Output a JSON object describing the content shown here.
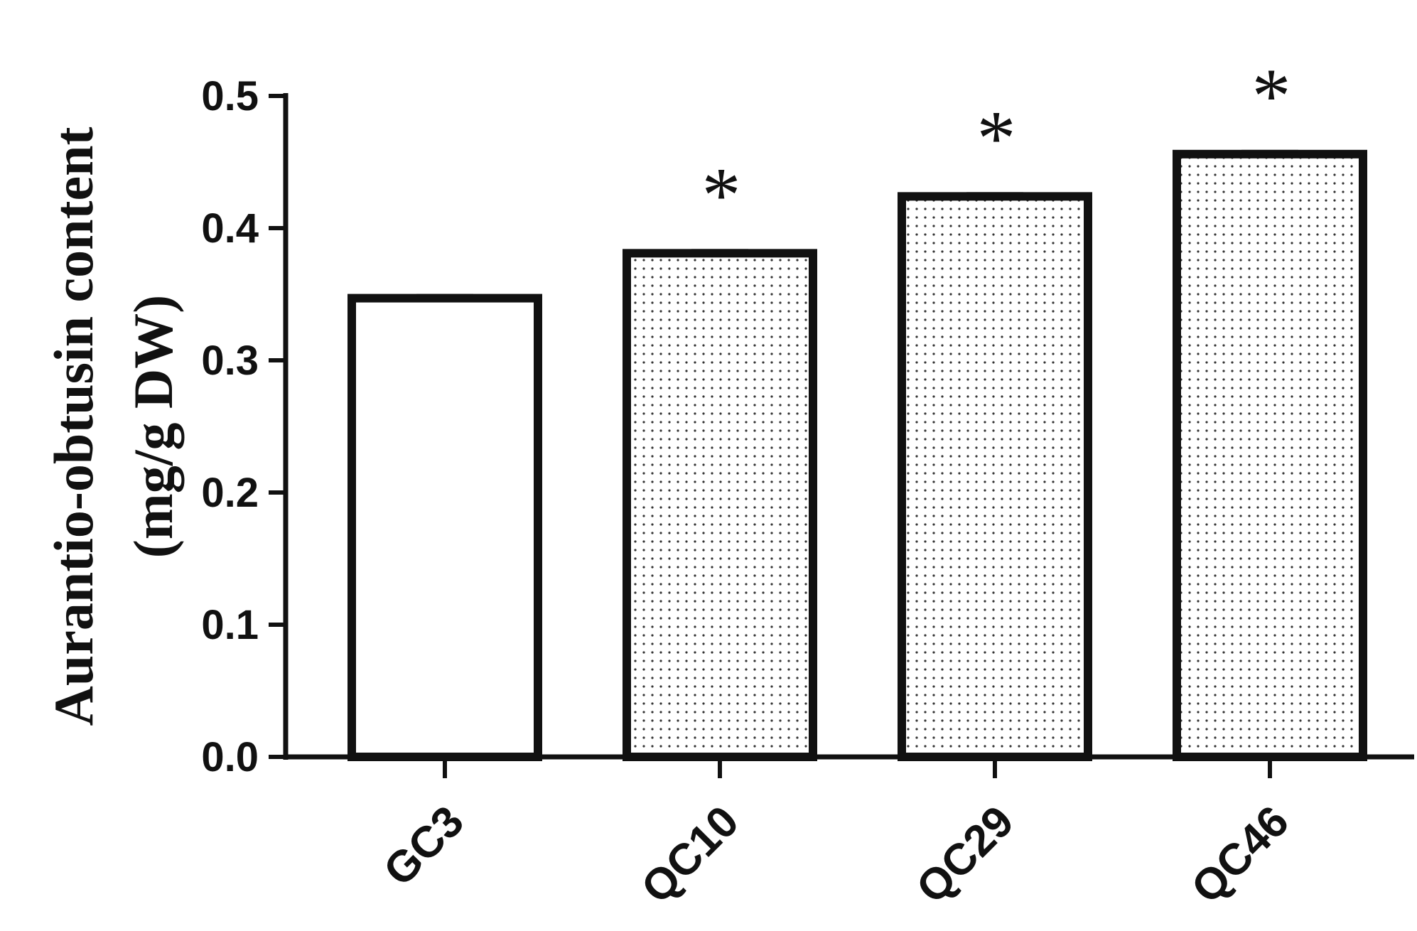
{
  "chart_data": {
    "type": "bar",
    "title": "",
    "categories": [
      "GC3",
      "QC10",
      "QC29",
      "QC46"
    ],
    "values": [
      0.347,
      0.381,
      0.424,
      0.456
    ],
    "fills": [
      "white",
      "dotted",
      "dotted",
      "dotted"
    ],
    "significance": [
      "",
      "*",
      "*",
      "*"
    ],
    "ylabel_line1": "Aurantio-obtusin content",
    "ylabel_line2": "(mg/g DW)",
    "xlabel": "",
    "ylim": [
      0,
      0.5
    ],
    "yticks": [
      "0.0",
      "0.1",
      "0.2",
      "0.3",
      "0.4",
      "0.5"
    ],
    "grid": false,
    "colors": {
      "stroke": "#111111",
      "fill": "#ffffff",
      "dot": "#333333"
    }
  }
}
